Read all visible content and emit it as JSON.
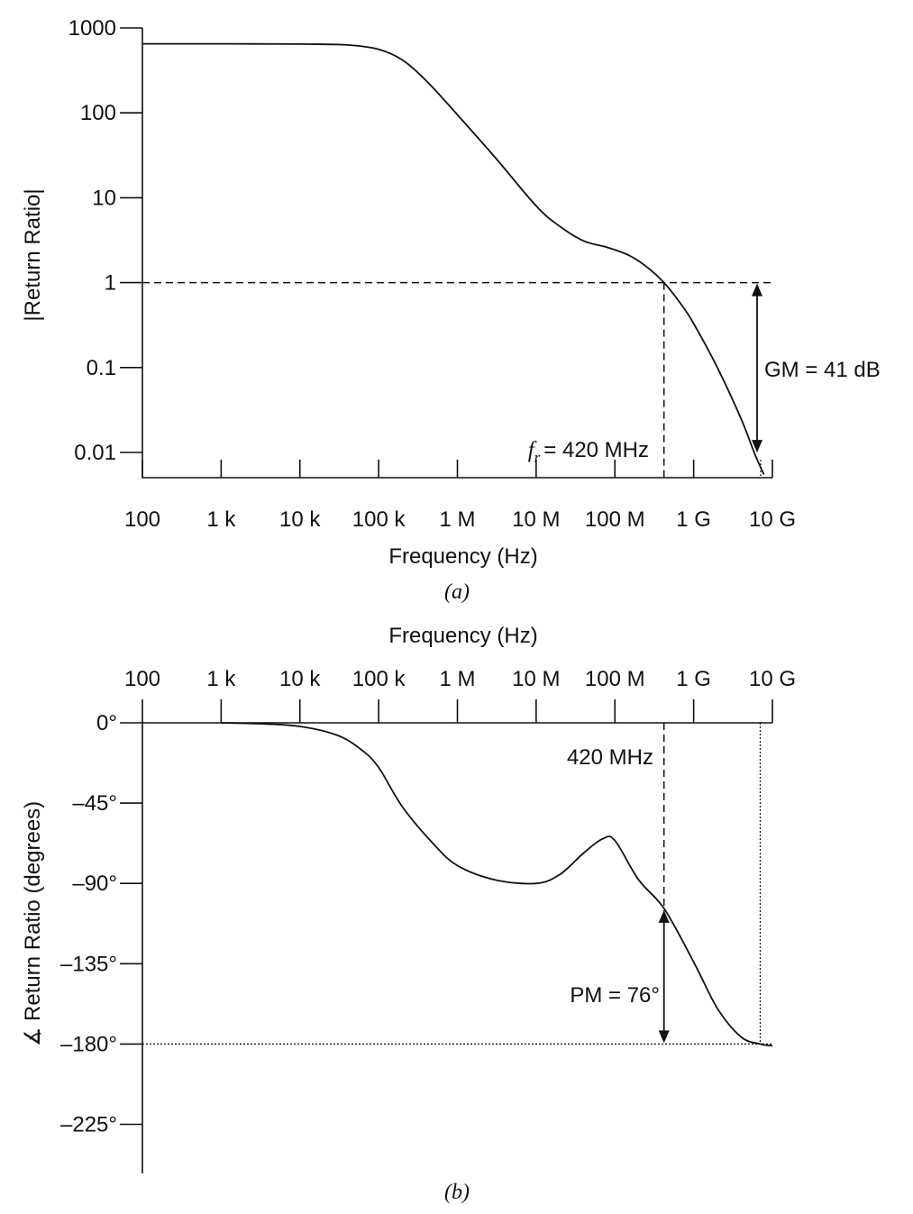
{
  "chart_data": [
    {
      "id": "a",
      "type": "line",
      "caption": "(a)",
      "xlabel": "Frequency (Hz)",
      "ylabel": "|Return Ratio|",
      "xscale": "log",
      "yscale": "log",
      "xlim": [
        100,
        10000000000
      ],
      "ylim": [
        0.005,
        1000
      ],
      "x_ticks": [
        {
          "value": 100,
          "label": "100"
        },
        {
          "value": 1000,
          "label": "1 k"
        },
        {
          "value": 10000,
          "label": "10 k"
        },
        {
          "value": 100000,
          "label": "100 k"
        },
        {
          "value": 1000000,
          "label": "1 M"
        },
        {
          "value": 10000000,
          "label": "10 M"
        },
        {
          "value": 100000000,
          "label": "100 M"
        },
        {
          "value": 1000000000,
          "label": "1 G"
        },
        {
          "value": 10000000000,
          "label": "10 G"
        }
      ],
      "y_ticks": [
        {
          "value": 1000,
          "label": "1000"
        },
        {
          "value": 100,
          "label": "100"
        },
        {
          "value": 10,
          "label": "10"
        },
        {
          "value": 1,
          "label": "1"
        },
        {
          "value": 0.1,
          "label": "0.1"
        },
        {
          "value": 0.01,
          "label": "0.01"
        }
      ],
      "series": [
        {
          "x": [
            100,
            1000,
            10000,
            40000,
            100000,
            200000,
            400000,
            1000000,
            3000000,
            10000000,
            20000000,
            40000000,
            80000000,
            150000000,
            250000000,
            420000000,
            700000000,
            1000000000,
            2000000000,
            4000000000,
            6000000000,
            7800000000
          ],
          "y": [
            650,
            650,
            645,
            630,
            560,
            420,
            240,
            95,
            30,
            8,
            4.6,
            3.1,
            2.6,
            2.1,
            1.55,
            1.0,
            0.55,
            0.33,
            0.1,
            0.025,
            0.0095,
            0.0055
          ]
        }
      ],
      "annotations": {
        "crossover_label": "f",
        "crossover_sub": "r",
        "crossover_value": "= 420 MHz",
        "crossover_freq": 420000000,
        "gm_label": "GM = 41 dB",
        "gm_freq": 7000000000,
        "gm_bottom": 0.0095
      }
    },
    {
      "id": "b",
      "type": "line",
      "caption": "(b)",
      "xlabel": "Frequency (Hz)",
      "ylabel": "∡ Return Ratio (degrees)",
      "xscale": "log",
      "xlim": [
        100,
        10000000000
      ],
      "ylim": [
        -245,
        0
      ],
      "x_ticks": [
        {
          "value": 100,
          "label": "100"
        },
        {
          "value": 1000,
          "label": "1 k"
        },
        {
          "value": 10000,
          "label": "10 k"
        },
        {
          "value": 100000,
          "label": "100 k"
        },
        {
          "value": 1000000,
          "label": "1 M"
        },
        {
          "value": 10000000,
          "label": "10 M"
        },
        {
          "value": 100000000,
          "label": "100 M"
        },
        {
          "value": 1000000000,
          "label": "1 G"
        },
        {
          "value": 10000000000,
          "label": "10 G"
        }
      ],
      "y_ticks": [
        {
          "value": 0,
          "label": "0°"
        },
        {
          "value": -45,
          "label": "–45°"
        },
        {
          "value": -90,
          "label": "–90°"
        },
        {
          "value": -135,
          "label": "–135°"
        },
        {
          "value": -180,
          "label": "–180°"
        },
        {
          "value": -225,
          "label": "–225°"
        }
      ],
      "series": [
        {
          "x": [
            1000,
            3000,
            10000,
            30000,
            60000,
            100000,
            200000,
            500000,
            1000000,
            3000000,
            10000000,
            20000000,
            40000000,
            70000000,
            100000000,
            200000000,
            420000000,
            1000000000,
            2000000000,
            4000000000,
            7000000000,
            10000000000
          ],
          "y": [
            0,
            -0.5,
            -2,
            -7,
            -15,
            -25,
            -47,
            -68,
            -80,
            -88,
            -90,
            -85,
            -73,
            -65,
            -66,
            -88,
            -104,
            -134,
            -160,
            -176,
            -180,
            -181
          ]
        }
      ],
      "annotations": {
        "crossover_label": "420 MHz",
        "crossover_freq": 420000000,
        "crossover_phase": -104,
        "pm_label": "PM = 76°",
        "reference_phase": -180,
        "end_freq": 7000000000
      }
    }
  ]
}
